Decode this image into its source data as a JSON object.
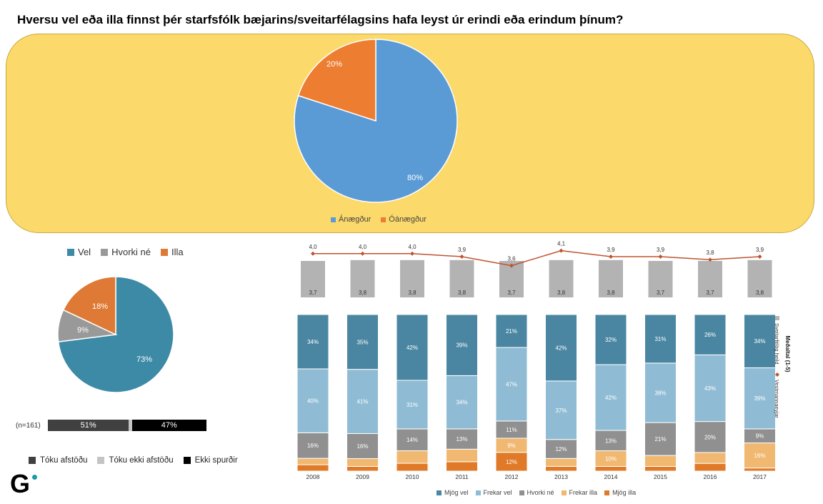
{
  "title": "Hversu vel eða illa finnst þér starfsfólk bæjarins/sveitarfélagsins hafa leyst úr erindi eða erindum þínum?",
  "colors": {
    "panel": "#fbd96b",
    "blue_pie": "#5b9bd5",
    "orange_pie": "#ed7d31",
    "teal": "#3d8aa6",
    "gray": "#999999",
    "orange": "#de7a35",
    "mjog_vel": "#4a86a2",
    "frekar_vel": "#8fbcd4",
    "hvorki_ne": "#909090",
    "frekar_illa": "#f0b870",
    "mjog_illa": "#e07a28",
    "line": "#c0532f"
  },
  "chart_data": [
    {
      "type": "pie",
      "title": "",
      "labels": [
        "Ánægður",
        "Óánægður"
      ],
      "values": [
        80,
        20
      ],
      "value_labels": [
        "80%",
        "20%"
      ]
    },
    {
      "type": "pie",
      "labels": [
        "Vel",
        "Hvorki né",
        "Illa"
      ],
      "values": [
        73,
        9,
        18
      ],
      "value_labels": [
        "73%",
        "9%",
        "18%"
      ]
    },
    {
      "type": "bar",
      "orientation": "horizontal",
      "label": "(n=161)",
      "categories": [
        "Tóku afstöðu",
        "Tóku ekki afstöðu",
        "Ekki spurðir"
      ],
      "values": [
        51,
        2,
        47
      ],
      "value_labels": [
        "51%",
        "",
        "47%"
      ]
    },
    {
      "type": "bar",
      "stacked": true,
      "categories": [
        "2008",
        "2009",
        "2010",
        "2011",
        "2012",
        "2013",
        "2014",
        "2015",
        "2016",
        "2017"
      ],
      "series": [
        {
          "name": "Mjög illa",
          "values": [
            4,
            3,
            5,
            6,
            12,
            3,
            3,
            3,
            5,
            2
          ],
          "labels": [
            "",
            "",
            "",
            "",
            "12%",
            "",
            "",
            "",
            "",
            ""
          ]
        },
        {
          "name": "Frekar illa",
          "values": [
            4,
            5,
            8,
            8,
            9,
            5,
            10,
            7,
            7,
            16
          ],
          "labels": [
            "",
            "",
            "",
            "",
            "9%",
            "",
            "10%",
            "",
            "",
            "16%"
          ]
        },
        {
          "name": "Hvorki né",
          "values": [
            16,
            16,
            14,
            13,
            11,
            12,
            13,
            21,
            20,
            9
          ],
          "labels": [
            "16%",
            "16%",
            "14%",
            "13%",
            "11%",
            "12%",
            "13%",
            "21%",
            "20%",
            "9%"
          ]
        },
        {
          "name": "Frekar vel",
          "values": [
            40,
            41,
            31,
            34,
            47,
            37,
            42,
            38,
            43,
            39
          ],
          "labels": [
            "40%",
            "41%",
            "31%",
            "34%",
            "47%",
            "37%",
            "42%",
            "38%",
            "43%",
            "39%"
          ]
        },
        {
          "name": "Mjög vel",
          "values": [
            34,
            35,
            42,
            39,
            21,
            42,
            32,
            31,
            26,
            34
          ],
          "labels": [
            "34%",
            "35%",
            "42%",
            "39%",
            "21%",
            "42%",
            "32%",
            "31%",
            "26%",
            "34%"
          ]
        }
      ],
      "legend": [
        "Mjög vel",
        "Frekar vel",
        "Hvorki né",
        "Frekar illa",
        "Mjög illa"
      ]
    },
    {
      "type": "bar",
      "title": "Meðaltal (1-5)",
      "series": [
        {
          "name": "Sveitarfélög heild",
          "values": [
            3.7,
            3.8,
            3.8,
            3.8,
            3.7,
            3.8,
            3.8,
            3.7,
            3.7,
            3.8
          ],
          "labels": [
            "3,7",
            "3,8",
            "3,8",
            "3,8",
            "3,7",
            "3,8",
            "3,8",
            "3,7",
            "3,7",
            "3,8"
          ]
        },
        {
          "name": "Vestmannaeyjar",
          "type": "line",
          "values": [
            4.0,
            4.0,
            4.0,
            3.9,
            3.6,
            4.1,
            3.9,
            3.9,
            3.8,
            3.9
          ],
          "labels": [
            "4,0",
            "4,0",
            "4,0",
            "3,9",
            "3,6",
            "4,1",
            "3,9",
            "3,9",
            "3,8",
            "3,9"
          ]
        }
      ]
    }
  ],
  "legend_top": [
    "Ánægður",
    "Óánægður"
  ],
  "legend_pie2": [
    "Vel",
    "Hvorki né",
    "Illa"
  ],
  "response_legend": [
    "Tóku afstöðu",
    "Tóku ekki afstöðu",
    "Ekki spurðir"
  ],
  "side_title": "Meðaltal (1-5)",
  "logo": "G"
}
